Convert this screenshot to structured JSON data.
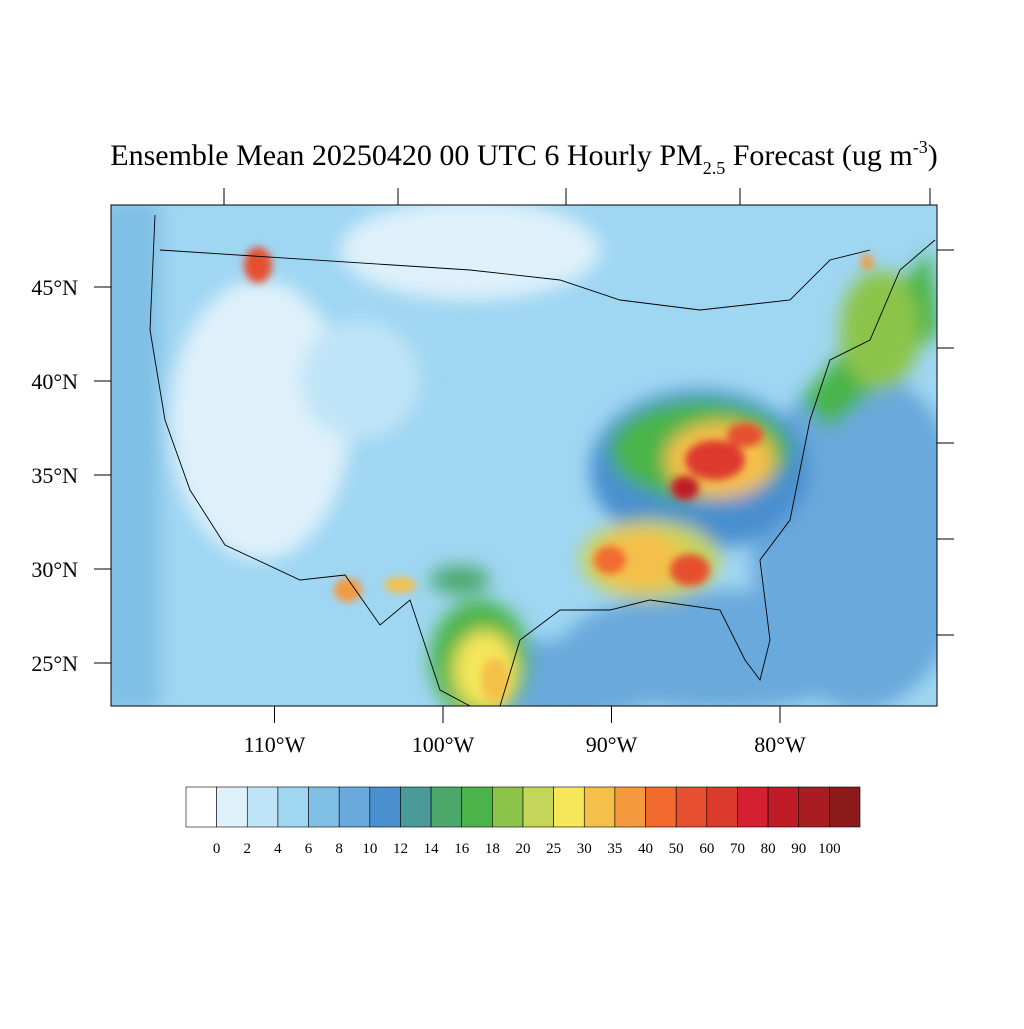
{
  "title": {
    "main": "Ensemble Mean 20250420 00 UTC 6 Hourly PM",
    "sub": "2.5",
    "rest": " Forecast (ug m",
    "sup": "-3",
    "end": ")"
  },
  "lat_ticks": [
    {
      "value": 45,
      "label": "45°N"
    },
    {
      "value": 40,
      "label": "40°N"
    },
    {
      "value": 35,
      "label": "35°N"
    },
    {
      "value": 30,
      "label": "30°N"
    },
    {
      "value": 25,
      "label": "25°N"
    }
  ],
  "lon_ticks": [
    {
      "value": -110,
      "label": "110°W"
    },
    {
      "value": -100,
      "label": "100°W"
    },
    {
      "value": -90,
      "label": "90°W"
    },
    {
      "value": -80,
      "label": "80°W"
    }
  ],
  "colorbar": {
    "levels": [
      0,
      2,
      4,
      6,
      8,
      10,
      12,
      14,
      16,
      18,
      20,
      25,
      30,
      35,
      40,
      50,
      60,
      70,
      80,
      90,
      100
    ],
    "colors": [
      "#ffffff",
      "#dff1fb",
      "#bfe4f7",
      "#9fd6f2",
      "#80bfe6",
      "#6aa9dc",
      "#4a8fcf",
      "#4a9a9a",
      "#4aa86a",
      "#4ab44a",
      "#8cc44a",
      "#c4d65a",
      "#f5e65a",
      "#f5c04a",
      "#f5993f",
      "#f26a2e",
      "#e6502e",
      "#dd3a2e",
      "#d42030",
      "#c01c28",
      "#a81c22",
      "#8c1a1a"
    ]
  }
}
